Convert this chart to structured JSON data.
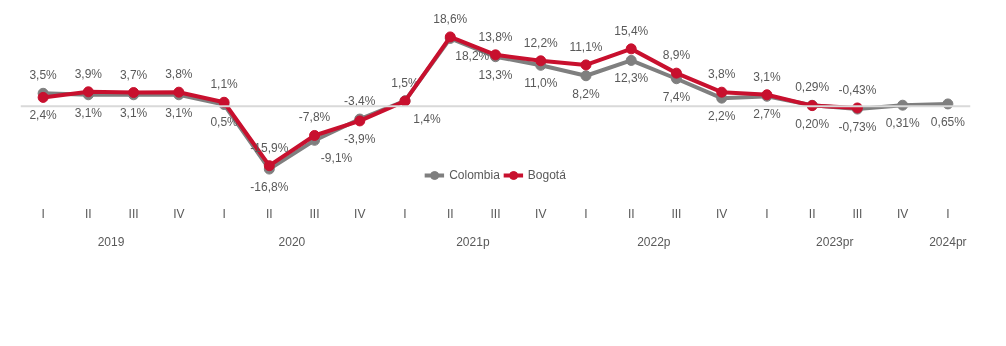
{
  "chart_data": {
    "type": "line",
    "categories": [
      "I",
      "II",
      "III",
      "IV",
      "I",
      "II",
      "III",
      "IV",
      "I",
      "II",
      "III",
      "IV",
      "I",
      "II",
      "III",
      "IV",
      "I",
      "II",
      "III",
      "IV",
      "I"
    ],
    "annotations": [
      "2019",
      "2020",
      "2021p",
      "2022p",
      "2023pr",
      "2024pr"
    ],
    "series": [
      {
        "name": "Colombia",
        "color": "#7f7f7f",
        "values": [
          3.5,
          3.1,
          3.1,
          3.1,
          0.5,
          -16.8,
          -9.1,
          -3.4,
          1.5,
          18.2,
          13.3,
          11.0,
          8.2,
          12.3,
          7.4,
          2.2,
          2.7,
          0.29,
          -0.73,
          0.31,
          0.65
        ],
        "value_labels": [
          "3,5%",
          "3,1%",
          "3,1%",
          "3,1%",
          "0,5%",
          "-16,8%",
          "-9,1%",
          "-3,4%",
          "1,5%",
          "18,2%",
          "13,3%",
          "11,0%",
          "8,2%",
          "12,3%",
          "7,4%",
          "2,2%",
          "2,7%",
          "0,29%",
          "-0,73%",
          "0,31%",
          "0,65%"
        ]
      },
      {
        "name": "Bogotá",
        "color": "#c8102e",
        "values": [
          2.4,
          3.9,
          3.7,
          3.8,
          1.1,
          -15.9,
          -7.8,
          -3.9,
          1.4,
          18.6,
          13.8,
          12.2,
          11.1,
          15.4,
          8.9,
          3.8,
          3.1,
          0.2,
          -0.43,
          null,
          null
        ],
        "value_labels": [
          "2,4%",
          "3,9%",
          "3,7%",
          "3,8%",
          "1,1%",
          "-15,9%",
          "-7,8%",
          "-3,9%",
          "1,4%",
          "18,6%",
          "13,8%",
          "12,2%",
          "11,1%",
          "15,4%",
          "8,9%",
          "3,8%",
          "3,1%",
          "0,20%",
          "-0,43%",
          null,
          null
        ]
      }
    ],
    "ref_lines": [
      {
        "axis": "y",
        "value": 0,
        "color": "#d9d9d9"
      }
    ],
    "marker": "circle",
    "line_style": "solid",
    "legend": "bottom",
    "tick_labels": "x"
  }
}
